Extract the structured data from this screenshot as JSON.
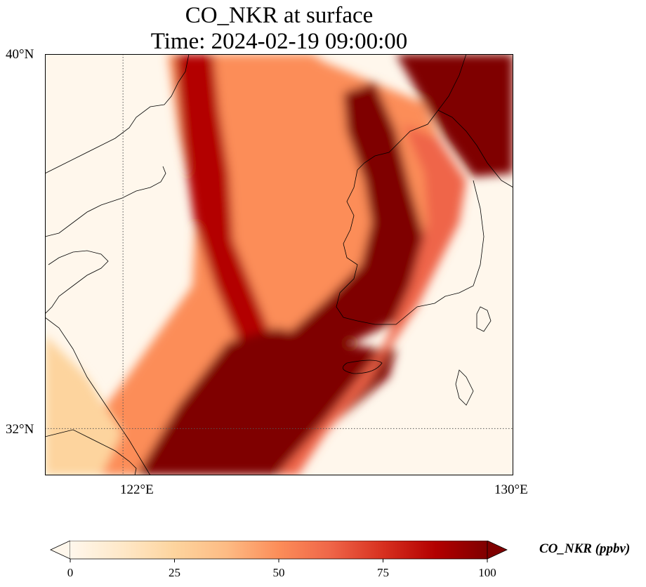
{
  "title": {
    "line1": "CO_NKR at surface",
    "line2": "Time: 2024-02-19 09:00:00"
  },
  "map": {
    "variable": "CO_NKR",
    "level": "surface",
    "units": "ppbv",
    "extent": {
      "lon_min": 120.4,
      "lon_max": 130.0,
      "lat_min": 31.0,
      "lat_max": 40.0
    },
    "gridlines": {
      "lon": [
        122
      ],
      "lat": [
        32
      ],
      "style": "dotted"
    },
    "lon_ticks": [
      "122°E",
      "130°E"
    ],
    "lat_ticks": [
      "40°N",
      "32°N"
    ],
    "colormap": "OrRd",
    "colormap_colors": [
      "#fff7ec",
      "#fee8c8",
      "#fdd49e",
      "#fdbb84",
      "#fc8d59",
      "#ef6548",
      "#d7301f",
      "#b30000",
      "#7f0000"
    ]
  },
  "colorbar": {
    "label": "CO_NKR (ppbv)",
    "min": 0,
    "max": 100,
    "ticks": [
      "0",
      "25",
      "50",
      "75",
      "100"
    ],
    "extend": "both"
  }
}
